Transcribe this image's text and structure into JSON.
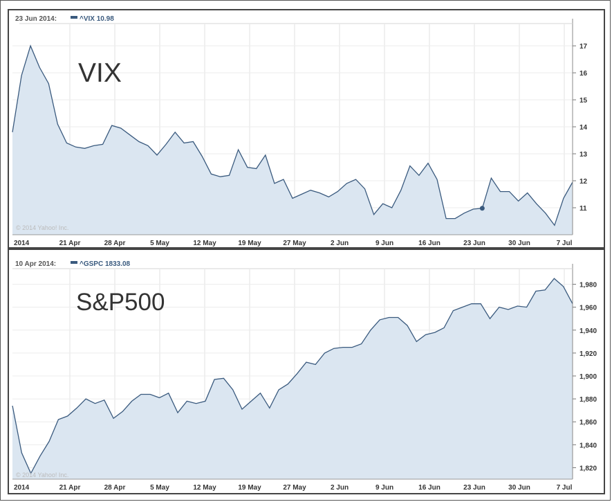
{
  "chart_data": [
    {
      "type": "area",
      "title": "VIX",
      "header_date": "23 Jun 2014:",
      "header_symbol": "^VIX 10.98",
      "copyright": "© 2014 Yahoo! Inc.",
      "x_ticks": [
        "2014",
        "21 Apr",
        "28 Apr",
        "5 May",
        "12 May",
        "19 May",
        "27 May",
        "2 Jun",
        "9 Jun",
        "16 Jun",
        "23 Jun",
        "30 Jun",
        "7 Jul"
      ],
      "y_ticks": [
        "11",
        "12",
        "13",
        "14",
        "15",
        "16",
        "17"
      ],
      "ylim": [
        10.0,
        17.8
      ],
      "highlight_index": 52,
      "grid": true,
      "fill_color": "#dbe6f1",
      "line_color": "#3a5a7e",
      "values": [
        13.8,
        15.9,
        17.0,
        16.2,
        15.6,
        14.1,
        13.4,
        13.25,
        13.2,
        13.3,
        13.35,
        14.05,
        13.95,
        13.7,
        13.45,
        13.3,
        12.95,
        13.35,
        13.8,
        13.4,
        13.45,
        12.9,
        12.25,
        12.15,
        12.2,
        13.15,
        12.5,
        12.45,
        12.95,
        11.9,
        12.05,
        11.35,
        11.5,
        11.65,
        11.55,
        11.4,
        11.6,
        11.9,
        12.05,
        11.7,
        10.75,
        11.15,
        11.0,
        11.65,
        12.55,
        12.2,
        12.65,
        12.05,
        10.6,
        10.6,
        10.8,
        10.95,
        10.98,
        12.1,
        11.6,
        11.6,
        11.25,
        11.55,
        11.15,
        10.8,
        10.35,
        11.35,
        11.95
      ]
    },
    {
      "type": "area",
      "title": "S&P500",
      "header_date": "10 Apr 2014:",
      "header_symbol": "^GSPC 1833.08",
      "copyright": "© 2014 Yahoo! Inc.",
      "x_ticks": [
        "2014",
        "21 Apr",
        "28 Apr",
        "5 May",
        "12 May",
        "19 May",
        "27 May",
        "2 Jun",
        "9 Jun",
        "16 Jun",
        "23 Jun",
        "30 Jun",
        "7 Jul"
      ],
      "y_ticks": [
        "1,820",
        "1,840",
        "1,860",
        "1,880",
        "1,900",
        "1,920",
        "1,940",
        "1,960",
        "1,980"
      ],
      "ylim": [
        1810,
        1993
      ],
      "grid": true,
      "fill_color": "#dbe6f1",
      "line_color": "#3a5a7e",
      "values": [
        1874,
        1833,
        1815,
        1830,
        1843,
        1862,
        1865,
        1872,
        1880,
        1876,
        1879,
        1863,
        1869,
        1878,
        1884,
        1884,
        1881,
        1885,
        1868,
        1878,
        1876,
        1878,
        1897,
        1898,
        1888,
        1871,
        1878,
        1885,
        1872,
        1888,
        1893,
        1902,
        1912,
        1910,
        1920,
        1924,
        1925,
        1925,
        1928,
        1940,
        1949,
        1951,
        1951,
        1944,
        1930,
        1936,
        1938,
        1942,
        1957,
        1960,
        1963,
        1963,
        1950,
        1960,
        1958,
        1961,
        1960,
        1974,
        1975,
        1985,
        1978,
        1963
      ]
    }
  ]
}
